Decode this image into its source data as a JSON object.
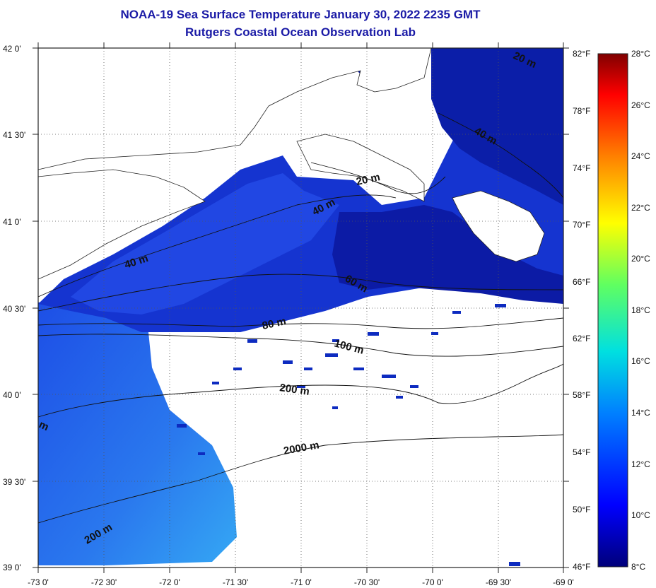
{
  "header": {
    "title_line_1": "NOAA-19 Sea Surface Temperature January 30, 2022 2235 GMT",
    "title_line_2": "Rutgers Coastal Ocean Observation Lab"
  },
  "map": {
    "lat_labels": [
      "42 0'",
      "41 30'",
      "41 0'",
      "40 30'",
      "40 0'",
      "39 30'",
      "39 0'"
    ],
    "lon_labels": [
      "-73 0'",
      "-72 30'",
      "-72 0'",
      "-71 30'",
      "-71 0'",
      "-70 30'",
      "-70 0'",
      "-69 30'",
      "-69 0'"
    ],
    "isobath_labels": [
      "20 m",
      "40 m",
      "40 m",
      "40 m",
      "60 m",
      "80 m",
      "100 m",
      "200 m",
      "200 m",
      "2000 m",
      "m",
      "20 m"
    ],
    "colors": {
      "water_cold": "#0a1a9c",
      "water_mid": "#1840e0",
      "water_warm": "#2e8cf2",
      "land": "#ffffff",
      "grid": "#555555"
    }
  },
  "colorbar": {
    "fahrenheit_labels": [
      "82°F",
      "78°F",
      "74°F",
      "70°F",
      "66°F",
      "62°F",
      "58°F",
      "54°F",
      "50°F",
      "46°F"
    ],
    "celsius_labels": [
      "28°C",
      "26°C",
      "24°C",
      "22°C",
      "20°C",
      "18°C",
      "16°C",
      "14°C",
      "12°C",
      "10°C",
      "8°C"
    ]
  }
}
